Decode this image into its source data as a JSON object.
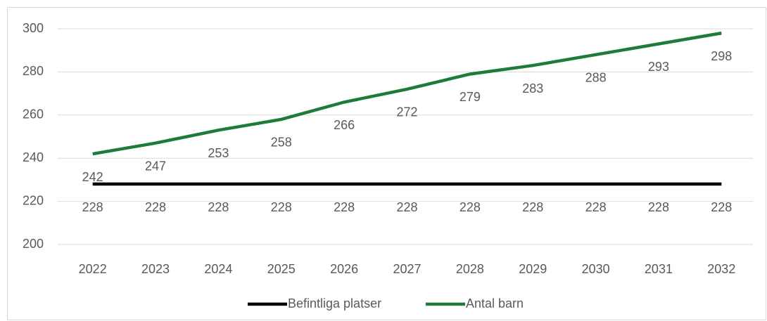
{
  "chart_data": {
    "type": "line",
    "categories": [
      "2022",
      "2023",
      "2024",
      "2025",
      "2026",
      "2027",
      "2028",
      "2029",
      "2030",
      "2031",
      "2032"
    ],
    "series": [
      {
        "name": "Befintliga platser",
        "color": "#000000",
        "values": [
          228,
          228,
          228,
          228,
          228,
          228,
          228,
          228,
          228,
          228,
          228
        ]
      },
      {
        "name": "Antal barn",
        "color": "#1e7b3a",
        "values": [
          242,
          247,
          253,
          258,
          266,
          272,
          279,
          283,
          288,
          293,
          298
        ]
      }
    ],
    "ylim": [
      200,
      300
    ],
    "yticks": [
      200,
      220,
      240,
      260,
      280,
      300
    ],
    "grid": true,
    "legend": "bottom"
  }
}
